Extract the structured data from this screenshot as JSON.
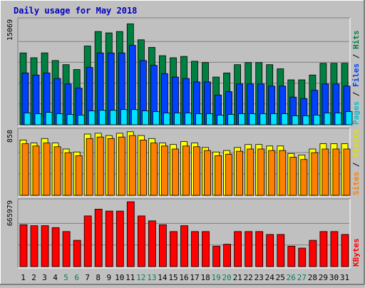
{
  "chart_data": {
    "type": "bar",
    "title": "Daily usage for May 2018",
    "categories": [
      "1",
      "2",
      "3",
      "4",
      "5",
      "6",
      "7",
      "8",
      "9",
      "10",
      "11",
      "12",
      "13",
      "14",
      "15",
      "16",
      "17",
      "18",
      "19",
      "20",
      "21",
      "22",
      "23",
      "24",
      "25",
      "26",
      "27",
      "28",
      "29",
      "30",
      "31"
    ],
    "weekend_days": [
      5,
      6,
      12,
      13,
      19,
      20,
      26,
      27
    ],
    "panels": [
      {
        "id": "requests",
        "max_label": "15069",
        "max": 15069,
        "series": [
          {
            "name": "Hits",
            "color": "#008040",
            "values": [
              10400,
              9700,
              10400,
              9300,
              8700,
              8000,
              11400,
              13500,
              13300,
              13500,
              14600,
              12300,
              11200,
              10000,
              9700,
              9900,
              9200,
              9000,
              6900,
              7500,
              8700,
              9000,
              9000,
              8700,
              8100,
              6500,
              6500,
              7200,
              8900,
              8900,
              8900
            ]
          },
          {
            "name": "Files",
            "color": "#0040ff",
            "values": [
              7500,
              7200,
              7500,
              6700,
              5900,
              5300,
              8300,
              10400,
              10400,
              10400,
              11500,
              9300,
              8600,
              7400,
              6900,
              6700,
              6200,
              6200,
              4300,
              4800,
              5900,
              5900,
              5900,
              5600,
              5600,
              4000,
              3800,
              5000,
              5900,
              5900,
              5600
            ]
          },
          {
            "name": "Pages",
            "color": "#00e0ff",
            "values": [
              1700,
              1600,
              1800,
              1600,
              1500,
              1400,
              2000,
              2100,
              2100,
              2200,
              2200,
              2000,
              1900,
              1700,
              1700,
              1700,
              1600,
              1600,
              1400,
              1500,
              1600,
              1600,
              1600,
              1600,
              1600,
              1300,
              1300,
              1400,
              1700,
              1700,
              1900
            ]
          }
        ]
      },
      {
        "id": "visitors",
        "max_label": "858",
        "max": 858,
        "series": [
          {
            "name": "Visits",
            "color": "#ffff00",
            "values": [
              740,
              700,
              760,
              700,
              620,
              580,
              820,
              830,
              800,
              830,
              850,
              800,
              760,
              700,
              680,
              720,
              700,
              640,
              580,
              600,
              640,
              680,
              680,
              660,
              660,
              560,
              540,
              620,
              690,
              690,
              690
            ]
          },
          {
            "name": "Sites",
            "color": "#ff8000",
            "values": [
              690,
              660,
              700,
              650,
              570,
              530,
              760,
              780,
              760,
              780,
              800,
              740,
              700,
              660,
              620,
              660,
              650,
              600,
              530,
              550,
              590,
              620,
              620,
              600,
              600,
              510,
              480,
              570,
              620,
              620,
              620
            ]
          }
        ]
      },
      {
        "id": "volume",
        "max_label": "665979",
        "max": 665979,
        "series": [
          {
            "name": "KBytes",
            "color": "#ff0000",
            "values": [
              430000,
              420000,
              420000,
              400000,
              360000,
              270000,
              520000,
              590000,
              570000,
              570000,
              665979,
              520000,
              470000,
              430000,
              360000,
              420000,
              360000,
              360000,
              210000,
              230000,
              360000,
              360000,
              360000,
              330000,
              330000,
              210000,
              190000,
              270000,
              360000,
              360000,
              330000
            ]
          }
        ]
      }
    ],
    "right_labels": {
      "requests": [
        "Pages",
        "Files",
        "Hits"
      ],
      "visitors": [
        "Sites",
        "Visits"
      ],
      "volume": [
        "KBytes"
      ]
    },
    "label_colors": {
      "Pages": "#00c0d0",
      "Files": "#0040ff",
      "Hits": "#008040",
      "Sites": "#ff8000",
      "Visits": "#e0e000",
      "KBytes": "#ff0000",
      "separator": "#000000",
      "title": "#0000c0",
      "weekday": "#000000",
      "weekend": "#008060"
    }
  }
}
